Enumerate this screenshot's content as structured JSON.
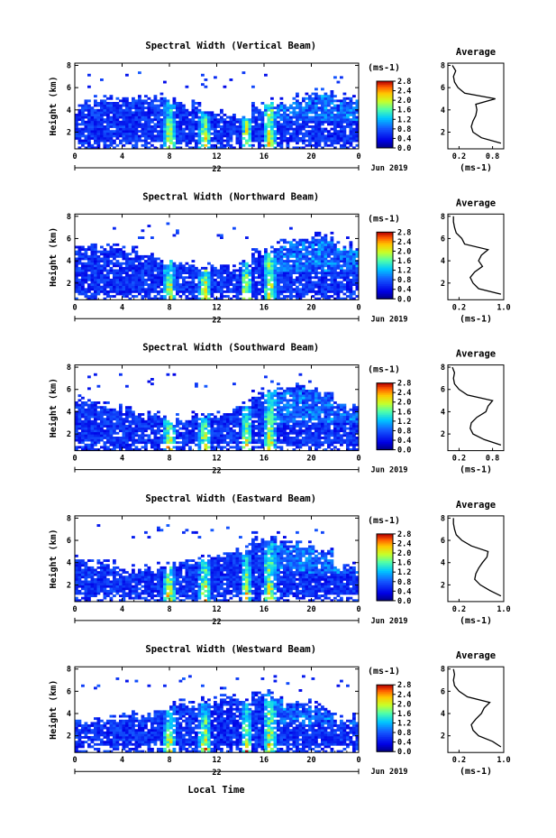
{
  "figure": {
    "x_axis_label": "Local Time",
    "date_label": "Jun 2019",
    "day_label": "22"
  },
  "chart_data": [
    {
      "type": "heatmap",
      "title": "Spectral Width (Vertical Beam)",
      "xlabel": "",
      "ylabel": "Height (km)",
      "xlim": [
        0,
        24
      ],
      "ylim": [
        0.5,
        8.2
      ],
      "x_ticks": [
        "0",
        "4",
        "8",
        "12",
        "16",
        "20",
        "0"
      ],
      "y_ticks": [
        "2",
        "4",
        "6",
        "8"
      ],
      "colorbar": {
        "unit": "(ms-1)",
        "ticks": [
          "0.0",
          "0.4",
          "0.8",
          "1.2",
          "1.6",
          "2.0",
          "2.4",
          "2.8"
        ],
        "range": [
          0,
          2.8
        ]
      },
      "profile": {
        "title": "Average",
        "xlabel": "(ms-1)",
        "x_ticks": [
          "0.2",
          "0.8"
        ],
        "xlim": [
          0,
          1.0
        ],
        "heights": [
          1,
          1.5,
          2,
          2.5,
          3,
          3.5,
          4,
          4.5,
          5,
          5.5,
          6,
          6.5,
          7,
          7.5,
          8
        ],
        "values": [
          0.95,
          0.6,
          0.45,
          0.42,
          0.45,
          0.5,
          0.52,
          0.5,
          0.85,
          0.3,
          0.18,
          0.12,
          0.1,
          0.14,
          0.08
        ]
      }
    },
    {
      "type": "heatmap",
      "title": "Spectral Width (Northward Beam)",
      "xlabel": "",
      "ylabel": "Height (km)",
      "xlim": [
        0,
        24
      ],
      "ylim": [
        0.5,
        8.2
      ],
      "x_ticks": [
        "0",
        "4",
        "8",
        "12",
        "16",
        "20",
        "0"
      ],
      "y_ticks": [
        "2",
        "4",
        "6",
        "8"
      ],
      "colorbar": {
        "unit": "(ms-1)",
        "ticks": [
          "0.0",
          "0.4",
          "0.8",
          "1.2",
          "1.6",
          "2.0",
          "2.4",
          "2.8"
        ],
        "range": [
          0,
          2.8
        ]
      },
      "profile": {
        "title": "Average",
        "xlabel": "(ms-1)",
        "x_ticks": [
          "0.2",
          "1.0"
        ],
        "xlim": [
          0,
          1.0
        ],
        "heights": [
          1,
          1.5,
          2,
          2.5,
          3,
          3.5,
          4,
          4.5,
          5,
          5.5,
          6,
          6.5,
          7,
          7.5,
          8
        ],
        "values": [
          0.95,
          0.55,
          0.45,
          0.4,
          0.48,
          0.62,
          0.55,
          0.6,
          0.72,
          0.3,
          0.25,
          0.15,
          0.12,
          0.1,
          0.1
        ]
      }
    },
    {
      "type": "heatmap",
      "title": "Spectral Width (Southward Beam)",
      "xlabel": "",
      "ylabel": "Height (km)",
      "xlim": [
        0,
        24
      ],
      "ylim": [
        0.5,
        8.2
      ],
      "x_ticks": [
        "0",
        "4",
        "8",
        "12",
        "16",
        "20",
        "0"
      ],
      "y_ticks": [
        "2",
        "4",
        "6",
        "8"
      ],
      "colorbar": {
        "unit": "(ms-1)",
        "ticks": [
          "0.0",
          "0.4",
          "0.8",
          "1.2",
          "1.6",
          "2.0",
          "2.4",
          "2.8"
        ],
        "range": [
          0,
          2.8
        ]
      },
      "profile": {
        "title": "Average",
        "xlabel": "(ms-1)",
        "x_ticks": [
          "0.2",
          "0.8"
        ],
        "xlim": [
          0,
          1.0
        ],
        "heights": [
          1,
          1.5,
          2,
          2.5,
          3,
          3.5,
          4,
          4.5,
          5,
          5.5,
          6,
          6.5,
          7,
          7.5,
          8
        ],
        "values": [
          0.95,
          0.65,
          0.45,
          0.4,
          0.42,
          0.52,
          0.68,
          0.72,
          0.8,
          0.35,
          0.2,
          0.12,
          0.1,
          0.12,
          0.08
        ]
      }
    },
    {
      "type": "heatmap",
      "title": "Spectral Width (Eastward Beam)",
      "xlabel": "",
      "ylabel": "Height (km)",
      "xlim": [
        0,
        24
      ],
      "ylim": [
        0.5,
        8.2
      ],
      "x_ticks": [
        "0",
        "4",
        "8",
        "12",
        "16",
        "20",
        "0"
      ],
      "y_ticks": [
        "2",
        "4",
        "6",
        "8"
      ],
      "colorbar": {
        "unit": "(ms-1)",
        "ticks": [
          "0.0",
          "0.4",
          "0.8",
          "1.2",
          "1.6",
          "2.0",
          "2.4",
          "2.8"
        ],
        "range": [
          0,
          2.8
        ]
      },
      "profile": {
        "title": "Average",
        "xlabel": "(ms-1)",
        "x_ticks": [
          "0.2",
          "1.0"
        ],
        "xlim": [
          0,
          1.0
        ],
        "heights": [
          1,
          1.5,
          2,
          2.5,
          3,
          3.5,
          4,
          4.5,
          5,
          5.5,
          6,
          6.5,
          7,
          7.5,
          8
        ],
        "values": [
          0.95,
          0.75,
          0.58,
          0.48,
          0.5,
          0.55,
          0.62,
          0.7,
          0.72,
          0.42,
          0.25,
          0.15,
          0.12,
          0.1,
          0.1
        ]
      }
    },
    {
      "type": "heatmap",
      "title": "Spectral Width (Westward Beam)",
      "xlabel": "",
      "ylabel": "Height (km)",
      "xlim": [
        0,
        24
      ],
      "ylim": [
        0.5,
        8.2
      ],
      "x_ticks": [
        "0",
        "4",
        "8",
        "12",
        "16",
        "20",
        "0"
      ],
      "y_ticks": [
        "2",
        "4",
        "6",
        "8"
      ],
      "colorbar": {
        "unit": "(ms-1)",
        "ticks": [
          "0.0",
          "0.4",
          "0.8",
          "1.2",
          "1.6",
          "2.0",
          "2.4",
          "2.8"
        ],
        "range": [
          0,
          2.8
        ]
      },
      "profile": {
        "title": "Average",
        "xlabel": "(ms-1)",
        "x_ticks": [
          "0.2",
          "1.0"
        ],
        "xlim": [
          0,
          1.0
        ],
        "heights": [
          1,
          1.5,
          2,
          2.5,
          3,
          3.5,
          4,
          4.5,
          5,
          5.5,
          6,
          6.5,
          7,
          7.5,
          8
        ],
        "values": [
          0.95,
          0.8,
          0.55,
          0.45,
          0.42,
          0.5,
          0.6,
          0.65,
          0.75,
          0.35,
          0.2,
          0.12,
          0.1,
          0.12,
          0.1
        ]
      }
    }
  ]
}
